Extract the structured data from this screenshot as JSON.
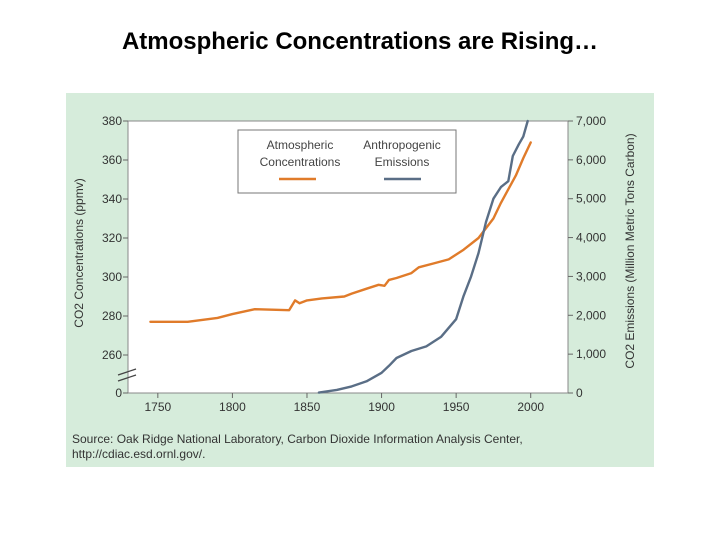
{
  "slide": {
    "title": "Atmospheric Concentrations are Rising…"
  },
  "chart_data": {
    "type": "line",
    "x_ticks": [
      "1750",
      "1800",
      "1850",
      "1900",
      "1950",
      "2000"
    ],
    "y_left": {
      "label": "CO2 Concentrations (ppmv)",
      "ticks": [
        "0",
        "260",
        "280",
        "300",
        "320",
        "340",
        "360",
        "380"
      ],
      "range": [
        250,
        380
      ],
      "axis_break": true
    },
    "y_right": {
      "label": "CO2 Emissions (Million Metric Tons Carbon)",
      "ticks": [
        "0",
        "1,000",
        "2,000",
        "3,000",
        "4,000",
        "5,000",
        "6,000",
        "7,000"
      ],
      "range": [
        0,
        7000
      ]
    },
    "x_range": [
      1730,
      2025
    ],
    "legend": {
      "position": "top-center",
      "entries": [
        {
          "label_line1": "Atmospheric",
          "label_line2": "Concentrations",
          "color": "#E07B2A"
        },
        {
          "label_line1": "Anthropogenic",
          "label_line2": "Emissions",
          "color": "#5A6E86"
        }
      ]
    },
    "series": [
      {
        "name": "Atmospheric Concentrations",
        "axis": "left",
        "color": "#E07B2A",
        "x": [
          1745,
          1760,
          1770,
          1790,
          1800,
          1815,
          1838,
          1842,
          1845,
          1850,
          1860,
          1875,
          1880,
          1890,
          1898,
          1902,
          1905,
          1910,
          1920,
          1925,
          1935,
          1945,
          1955,
          1965,
          1975,
          1980,
          1985,
          1990,
          1995,
          2000
        ],
        "values": [
          277,
          277,
          277,
          279,
          281,
          283.5,
          283,
          288,
          286.5,
          288,
          289,
          290,
          291.5,
          294,
          296,
          295.5,
          298.5,
          299.5,
          302,
          305,
          307,
          309,
          314,
          320,
          330,
          338,
          345,
          352,
          361,
          369
        ]
      },
      {
        "name": "Anthropogenic Emissions",
        "axis": "right",
        "color": "#5A6E86",
        "x": [
          1858,
          1870,
          1880,
          1890,
          1900,
          1905,
          1910,
          1920,
          1930,
          1940,
          1950,
          1955,
          1960,
          1965,
          1970,
          1975,
          1980,
          1985,
          1988,
          1992,
          1995,
          1998
        ],
        "values": [
          10,
          80,
          170,
          300,
          520,
          700,
          900,
          1080,
          1200,
          1450,
          1900,
          2500,
          3000,
          3600,
          4400,
          5000,
          5300,
          5450,
          6100,
          6400,
          6600,
          7000
        ]
      }
    ],
    "source_line1": "Source: Oak Ridge National Laboratory, Carbon Dioxide Information Analysis Center,",
    "source_line2": "http://cdiac.esd.ornl.gov/."
  },
  "colors": {
    "panel_bg": "#D6ECDB",
    "plot_bg": "#FFFFFF",
    "axis": "#555555"
  }
}
